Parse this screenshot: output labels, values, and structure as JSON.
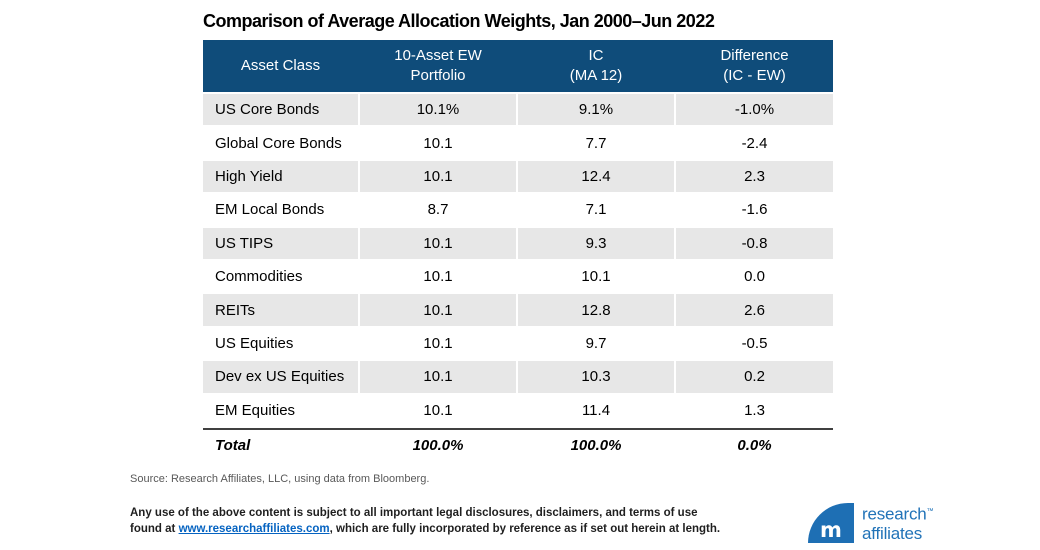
{
  "title": "Comparison of Average Allocation Weights, Jan 2000–Jun 2022",
  "chart_data": {
    "type": "table",
    "title": "Comparison of Average Allocation Weights, Jan 2000–Jun 2022",
    "columns": [
      {
        "line1": "Asset Class",
        "line2": ""
      },
      {
        "line1": "10-Asset EW",
        "line2": "Portfolio"
      },
      {
        "line1": "IC",
        "line2": "(MA 12)"
      },
      {
        "line1": "Difference",
        "line2": "(IC - EW)"
      }
    ],
    "rows": [
      {
        "asset": "US Core Bonds",
        "ew": "10.1%",
        "ic": "9.1%",
        "diff": "-1.0%"
      },
      {
        "asset": "Global Core Bonds",
        "ew": "10.1",
        "ic": "7.7",
        "diff": "-2.4"
      },
      {
        "asset": "High Yield",
        "ew": "10.1",
        "ic": "12.4",
        "diff": "2.3"
      },
      {
        "asset": "EM Local Bonds",
        "ew": "8.7",
        "ic": "7.1",
        "diff": "-1.6"
      },
      {
        "asset": "US TIPS",
        "ew": "10.1",
        "ic": "9.3",
        "diff": "-0.8"
      },
      {
        "asset": "Commodities",
        "ew": "10.1",
        "ic": "10.1",
        "diff": "0.0"
      },
      {
        "asset": "REITs",
        "ew": "10.1",
        "ic": "12.8",
        "diff": "2.6"
      },
      {
        "asset": "US Equities",
        "ew": "10.1",
        "ic": "9.7",
        "diff": "-0.5"
      },
      {
        "asset": "Dev ex US Equities",
        "ew": "10.1",
        "ic": "10.3",
        "diff": "0.2"
      },
      {
        "asset": "EM Equities",
        "ew": "10.1",
        "ic": "11.4",
        "diff": "1.3"
      }
    ],
    "total": {
      "asset": "Total",
      "ew": "100.0%",
      "ic": "100.0%",
      "diff": "0.0%"
    }
  },
  "footer": {
    "source": "Source: Research Affiliates, LLC, using data from Bloomberg.",
    "legal_line1": "Any use of the above content is subject to all important legal disclosures, disclaimers, and terms of use found at",
    "legal_link": "www.researchaffiliates.com",
    "legal_line2_rest": ", which are fully incorporated by reference as if set out herein at length."
  },
  "logo": {
    "monogram": "m",
    "name_line1": "research",
    "name_line2": "affiliates",
    "trademark": "™"
  },
  "colors": {
    "header_bg": "#0f4c7a",
    "row_alt_bg": "#e7e7e7",
    "total_border": "#404040",
    "logo_blue": "#1e6fb4",
    "logo_text_blue": "#2173b8",
    "link_blue": "#0563c1",
    "source_gray": "#595959"
  }
}
